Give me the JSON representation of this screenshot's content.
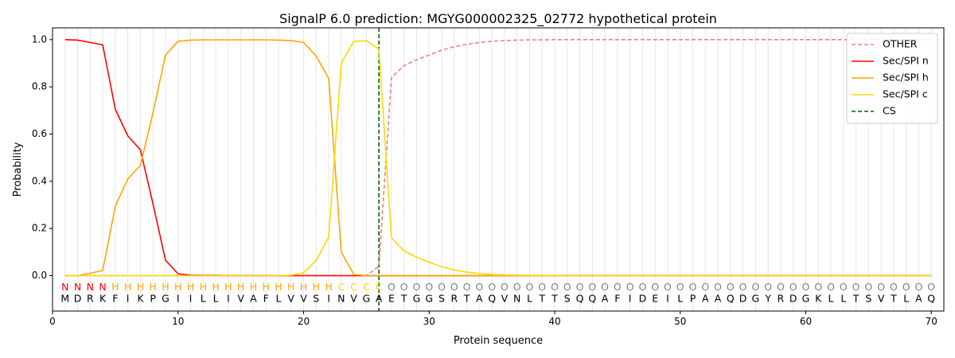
{
  "chart_data": {
    "type": "line",
    "title": "SignalP 6.0 prediction: MGYG000002325_02772 hypothetical protein",
    "xlabel": "Protein sequence",
    "ylabel": "Probability",
    "xlim": [
      0,
      71
    ],
    "ylim": [
      -0.15,
      1.05
    ],
    "xticks": [
      0,
      10,
      20,
      30,
      40,
      50,
      60,
      70
    ],
    "yticks": [
      0.0,
      0.2,
      0.4,
      0.6,
      0.8,
      1.0
    ],
    "xtick_labels": [
      "0",
      "10",
      "20",
      "30",
      "40",
      "50",
      "60",
      "70"
    ],
    "ytick_labels": [
      "0.0",
      "0.2",
      "0.4",
      "0.6",
      "0.8",
      "1.0"
    ],
    "grid": "vertical lines at each residue",
    "legend_position": "top-right",
    "sequence": [
      "M",
      "D",
      "R",
      "K",
      "F",
      "I",
      "K",
      "P",
      "G",
      "I",
      "I",
      "L",
      "L",
      "I",
      "V",
      "A",
      "F",
      "L",
      "V",
      "V",
      "S",
      "I",
      "N",
      "V",
      "G",
      "A",
      "E",
      "T",
      "G",
      "G",
      "S",
      "R",
      "T",
      "A",
      "Q",
      "V",
      "N",
      "L",
      "T",
      "T",
      "S",
      "Q",
      "Q",
      "A",
      "F",
      "I",
      "D",
      "E",
      "I",
      "L",
      "P",
      "A",
      "A",
      "Q",
      "D",
      "G",
      "Y",
      "R",
      "D",
      "G",
      "K",
      "L",
      "L",
      "T",
      "S",
      "V",
      "T",
      "L",
      "A",
      "Q"
    ],
    "region_labels": [
      "N",
      "N",
      "N",
      "N",
      "H",
      "H",
      "H",
      "H",
      "H",
      "H",
      "H",
      "H",
      "H",
      "H",
      "H",
      "H",
      "H",
      "H",
      "H",
      "H",
      "H",
      "H",
      "C",
      "C",
      "C",
      "C",
      "O",
      "O",
      "O",
      "O",
      "O",
      "O",
      "O",
      "O",
      "O",
      "O",
      "O",
      "O",
      "O",
      "O",
      "O",
      "O",
      "O",
      "O",
      "O",
      "O",
      "O",
      "O",
      "O",
      "O",
      "O",
      "O",
      "O",
      "O",
      "O",
      "O",
      "O",
      "O",
      "O",
      "O",
      "O",
      "O",
      "O",
      "O",
      "O",
      "O",
      "O",
      "O",
      "O",
      "O"
    ],
    "region_colors": {
      "N": "#ff0000",
      "H": "#ffa500",
      "C": "#ffd700",
      "O": "#808080"
    },
    "cleavage_site": 26,
    "series": [
      {
        "name": "OTHER",
        "color": "#f08080",
        "dash": true,
        "values": [
          0,
          0,
          0,
          0,
          0,
          0,
          0,
          0,
          0,
          0,
          0,
          0,
          0,
          0,
          0,
          0,
          0,
          0,
          0,
          0,
          0,
          0,
          0,
          0,
          0,
          0.04,
          0.84,
          0.89,
          0.915,
          0.935,
          0.955,
          0.97,
          0.98,
          0.988,
          0.993,
          0.996,
          0.998,
          0.999,
          0.999,
          1,
          1,
          1,
          1,
          1,
          1,
          1,
          1,
          1,
          1,
          1,
          1,
          1,
          1,
          1,
          1,
          1,
          1,
          1,
          1,
          1,
          1,
          1,
          1,
          1,
          1,
          1,
          1,
          1,
          1,
          1
        ]
      },
      {
        "name": "Sec/SPI n",
        "color": "#ff0000",
        "dash": false,
        "values": [
          1.0,
          0.998,
          0.988,
          0.978,
          0.705,
          0.592,
          0.533,
          0.305,
          0.065,
          0.008,
          0.002,
          0.001,
          0.001,
          0,
          0,
          0,
          0,
          0,
          0,
          0,
          0,
          0,
          0,
          0,
          0,
          0,
          0,
          0,
          0,
          0,
          0,
          0,
          0,
          0,
          0,
          0,
          0,
          0,
          0,
          0,
          0,
          0,
          0,
          0,
          0,
          0,
          0,
          0,
          0,
          0,
          0,
          0,
          0,
          0,
          0,
          0,
          0,
          0,
          0,
          0,
          0,
          0,
          0,
          0,
          0,
          0,
          0,
          0,
          0,
          0
        ]
      },
      {
        "name": "Sec/SPI h",
        "color": "#ffa500",
        "dash": false,
        "values": [
          0,
          0,
          0.01,
          0.022,
          0.295,
          0.41,
          0.467,
          0.69,
          0.935,
          0.993,
          0.998,
          0.999,
          0.999,
          0.999,
          0.999,
          0.999,
          0.999,
          0.998,
          0.996,
          0.988,
          0.93,
          0.835,
          0.1,
          0.005,
          0,
          0,
          0,
          0,
          0,
          0,
          0,
          0,
          0,
          0,
          0,
          0,
          0,
          0,
          0,
          0,
          0,
          0,
          0,
          0,
          0,
          0,
          0,
          0,
          0,
          0,
          0,
          0,
          0,
          0,
          0,
          0,
          0,
          0,
          0,
          0,
          0,
          0,
          0,
          0,
          0,
          0,
          0,
          0,
          0,
          0
        ]
      },
      {
        "name": "Sec/SPI c",
        "color": "#ffd700",
        "dash": false,
        "values": [
          0,
          0,
          0,
          0,
          0,
          0,
          0,
          0,
          0,
          0,
          0,
          0,
          0,
          0,
          0,
          0,
          0,
          0,
          0.002,
          0.012,
          0.065,
          0.163,
          0.9,
          0.993,
          0.995,
          0.96,
          0.16,
          0.105,
          0.078,
          0.057,
          0.038,
          0.024,
          0.015,
          0.009,
          0.005,
          0.003,
          0.002,
          0.001,
          0.001,
          0,
          0,
          0,
          0,
          0,
          0,
          0,
          0,
          0,
          0,
          0,
          0,
          0,
          0,
          0,
          0,
          0,
          0,
          0,
          0,
          0,
          0,
          0,
          0,
          0,
          0,
          0,
          0,
          0,
          0,
          0
        ]
      },
      {
        "name": "CS",
        "color": "#006400",
        "dash": true,
        "values": []
      }
    ]
  }
}
